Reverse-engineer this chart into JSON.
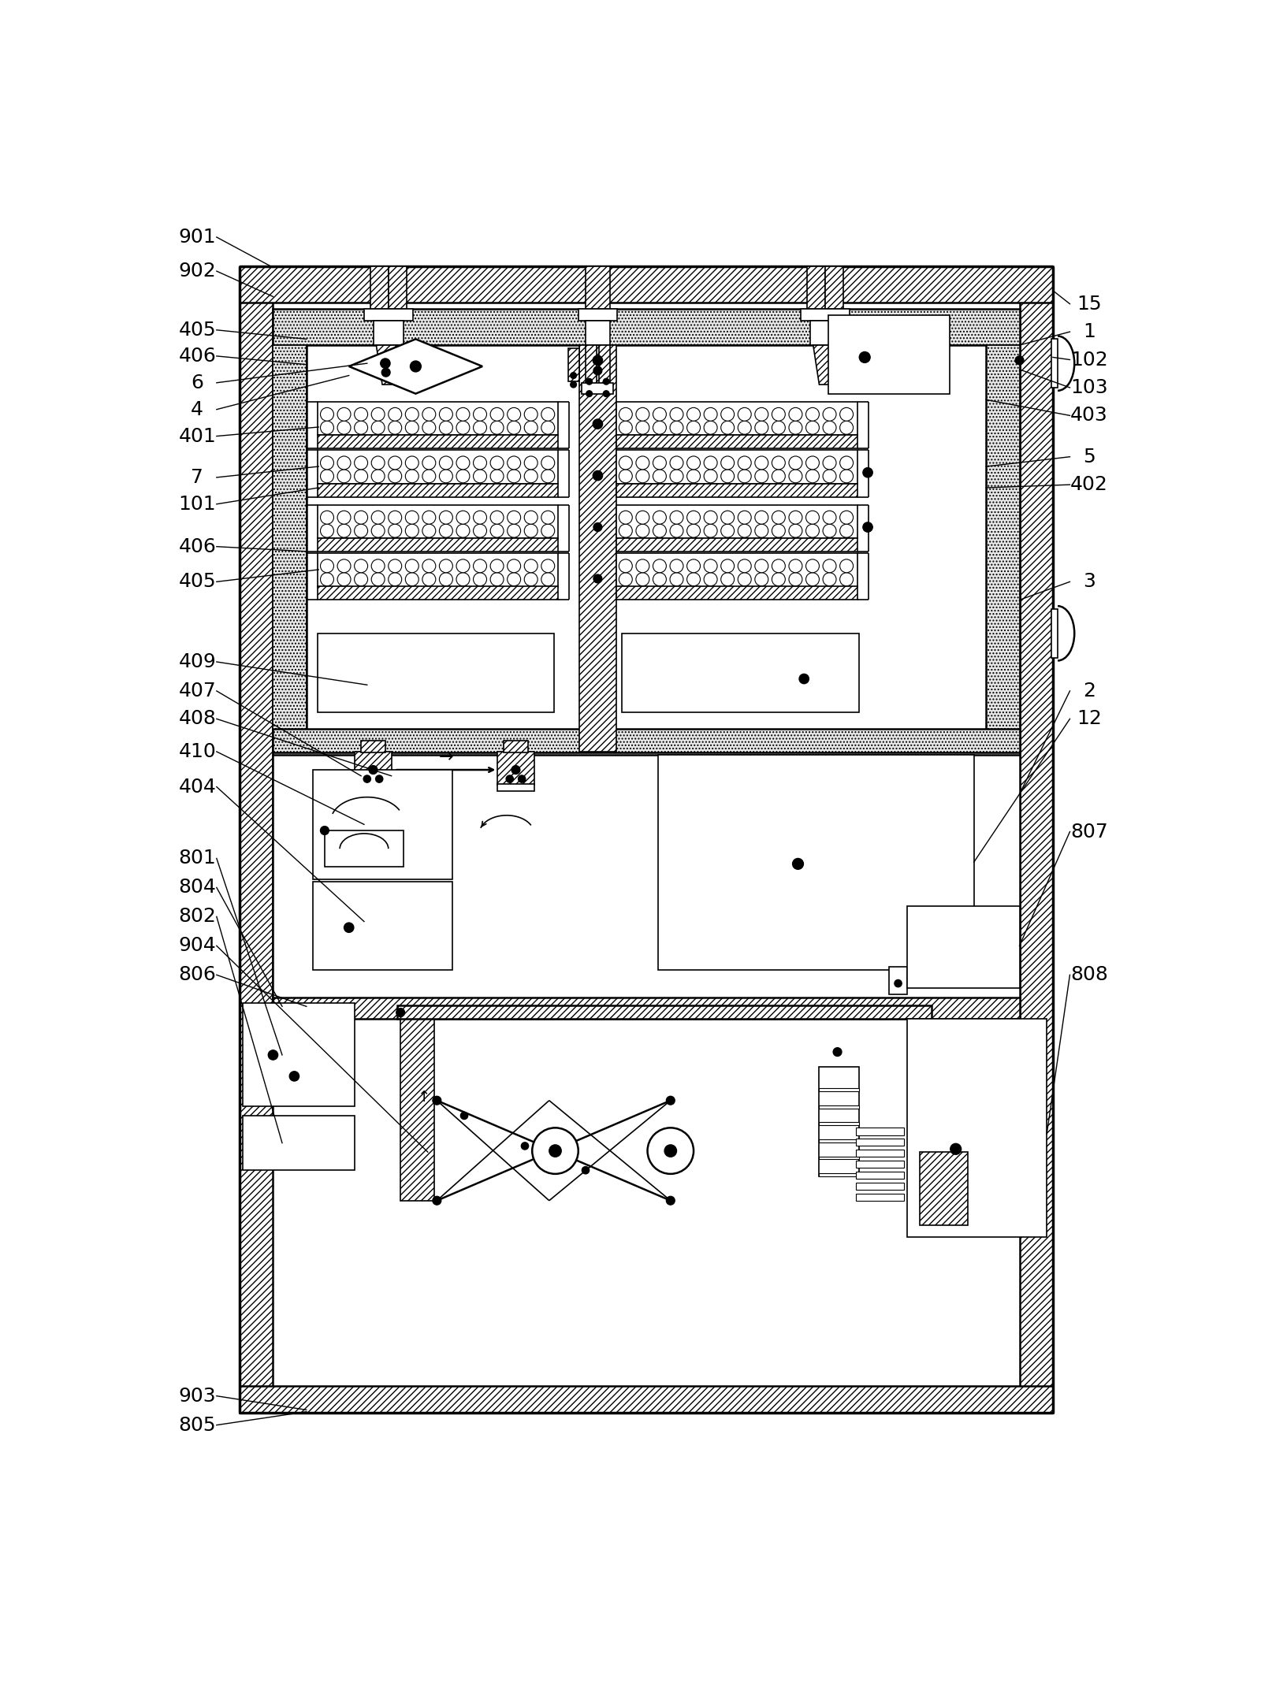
{
  "bg_color": "#ffffff",
  "lw_thin": 1.2,
  "lw_med": 1.8,
  "lw_thick": 2.5,
  "font_size": 18,
  "left_labels": [
    [
      "901",
      60,
      2078
    ],
    [
      "902",
      60,
      2022
    ],
    [
      "405",
      60,
      1925
    ],
    [
      "406",
      60,
      1882
    ],
    [
      "6",
      60,
      1838
    ],
    [
      "4",
      60,
      1794
    ],
    [
      "401",
      60,
      1750
    ],
    [
      "7",
      60,
      1682
    ],
    [
      "101",
      60,
      1638
    ],
    [
      "406",
      60,
      1568
    ],
    [
      "405",
      60,
      1510
    ],
    [
      "409",
      60,
      1378
    ],
    [
      "407",
      60,
      1330
    ],
    [
      "408",
      60,
      1284
    ],
    [
      "410",
      60,
      1230
    ],
    [
      "404",
      60,
      1172
    ],
    [
      "801",
      60,
      1054
    ],
    [
      "804",
      60,
      1006
    ],
    [
      "802",
      60,
      958
    ],
    [
      "904",
      60,
      910
    ],
    [
      "806",
      60,
      862
    ],
    [
      "903",
      60,
      168
    ],
    [
      "805",
      60,
      120
    ]
  ],
  "right_labels": [
    [
      "15",
      1530,
      1968
    ],
    [
      "1",
      1530,
      1922
    ],
    [
      "102",
      1530,
      1876
    ],
    [
      "103",
      1530,
      1830
    ],
    [
      "403",
      1530,
      1784
    ],
    [
      "5",
      1530,
      1716
    ],
    [
      "402",
      1530,
      1670
    ],
    [
      "3",
      1530,
      1510
    ],
    [
      "2",
      1530,
      1330
    ],
    [
      "12",
      1530,
      1284
    ],
    [
      "807",
      1530,
      1098
    ],
    [
      "808",
      1530,
      862
    ]
  ]
}
